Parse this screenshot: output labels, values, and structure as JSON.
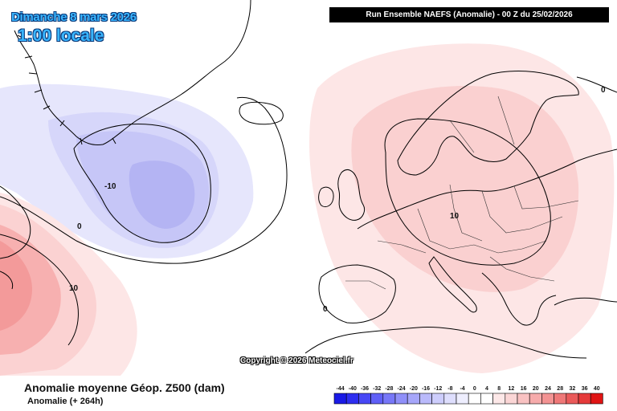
{
  "header": {
    "date": "Dimanche 8 mars 2026",
    "time": "1:00 locale",
    "run_info": "Run Ensemble NAEFS  (Anomalie)  - 00 Z du 25/02/2026"
  },
  "map": {
    "copyright": "Copyright © 2026 Meteociel.fr",
    "contour_labels": [
      "-10",
      "0",
      "10",
      "10",
      "0",
      "0"
    ]
  },
  "footer": {
    "title": "Anomalie moyenne Géop. Z500 (dam)",
    "subtitle": "Anomalie (+ 264h)"
  },
  "legend": {
    "ticks": [
      "-44",
      "-40",
      "-36",
      "-32",
      "-28",
      "-24",
      "-20",
      "-16",
      "-12",
      "-8",
      "-4",
      "0",
      "4",
      "8",
      "12",
      "16",
      "20",
      "24",
      "28",
      "32",
      "36",
      "40"
    ],
    "colors": [
      "#1a1ae6",
      "#2e2ef0",
      "#4747f5",
      "#5f5ff7",
      "#7777f8",
      "#8f8ff9",
      "#a6a6fa",
      "#babafb",
      "#cdcdfc",
      "#dedefd",
      "#eeeefe",
      "#ffffff",
      "#ffffff",
      "#fde8e8",
      "#fbd6d6",
      "#f9c2c2",
      "#f6abab",
      "#f39393",
      "#ef7878",
      "#ea5a5a",
      "#e53a3a",
      "#e01414"
    ]
  }
}
